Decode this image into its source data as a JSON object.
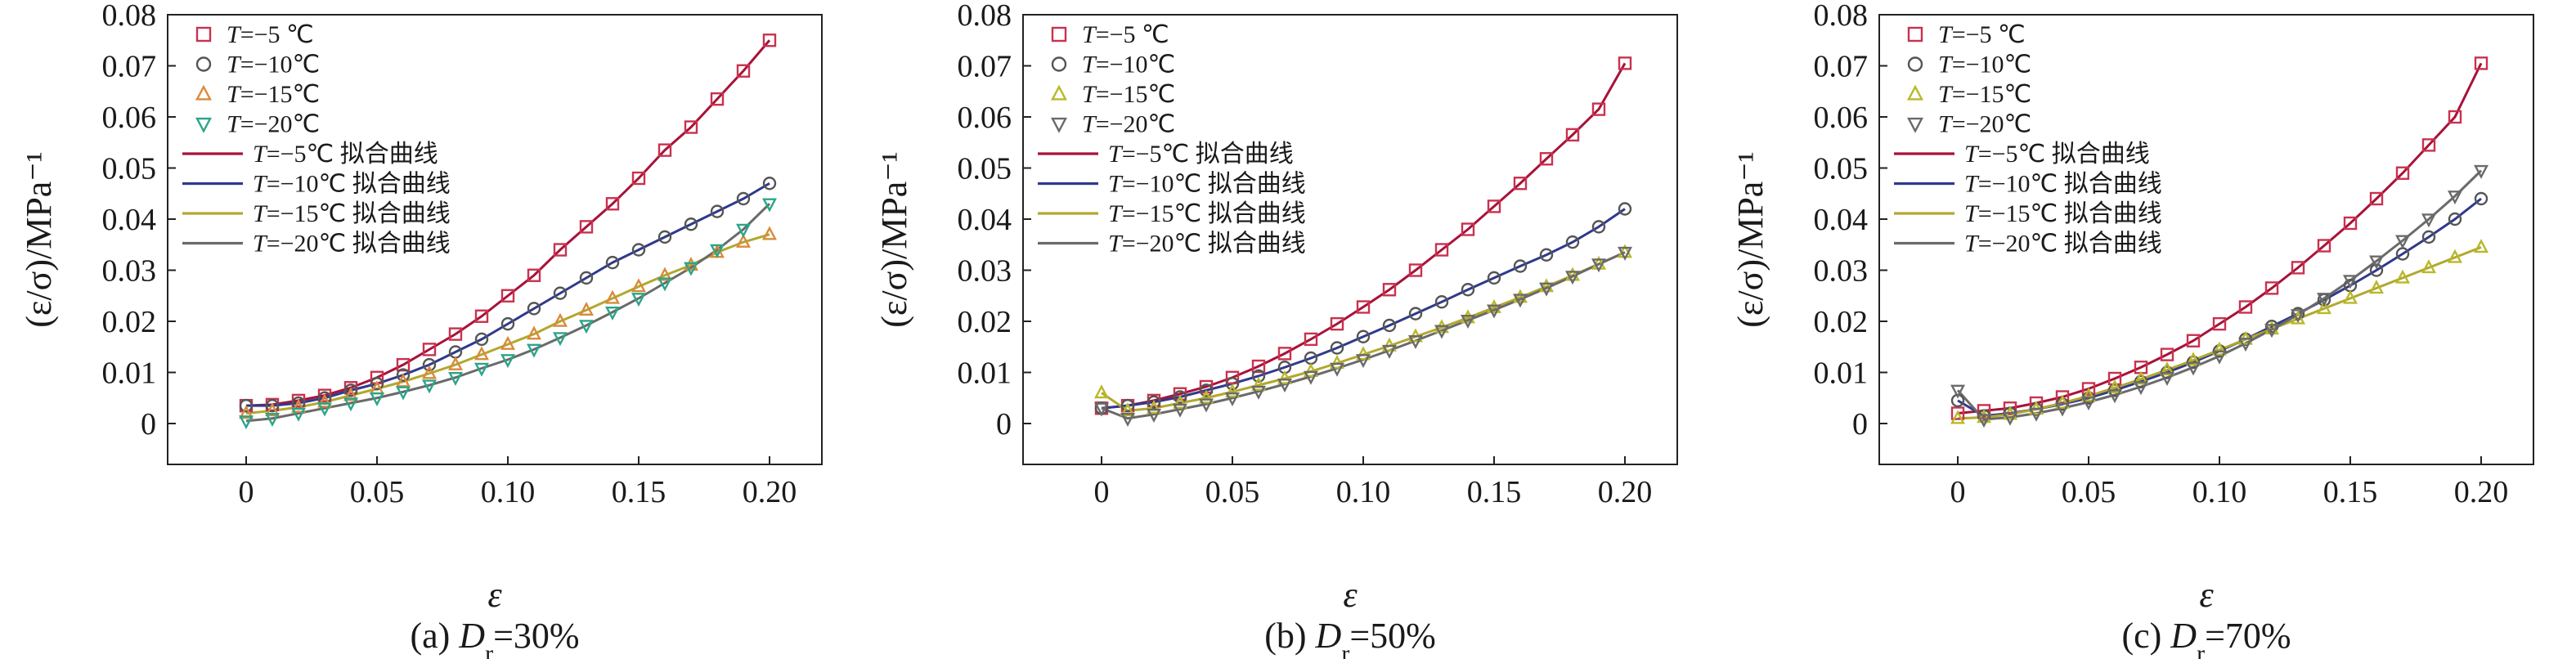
{
  "chart_data": [
    {
      "type": "scatter",
      "caption": "(a) D_r=30%",
      "caption_parts": {
        "prefix": "(a) ",
        "D": "D",
        "r": "r",
        "suffix": "=30%"
      },
      "xlabel": "ε",
      "ylabel": "(ε/σ)/MPa⁻¹",
      "xlim": [
        -0.03,
        0.22
      ],
      "ylim": [
        -0.008,
        0.08
      ],
      "xticks": [
        "0",
        "0.05",
        "0.10",
        "0.15",
        "0.20"
      ],
      "xtick_values": [
        0,
        0.05,
        0.1,
        0.15,
        0.2
      ],
      "yticks": [
        "0",
        "0.01",
        "0.02",
        "0.03",
        "0.04",
        "0.05",
        "0.06",
        "0.07",
        "0.08"
      ],
      "ytick_values": [
        0,
        0.01,
        0.02,
        0.03,
        0.04,
        0.05,
        0.06,
        0.07,
        0.08
      ],
      "legend": [
        {
          "prefix": "T",
          "text": "=−5 ℃",
          "kind": "marker",
          "marker": "square",
          "color": "#c8324e"
        },
        {
          "prefix": "T",
          "text": "=−10℃",
          "kind": "marker",
          "marker": "circle",
          "color": "#555555"
        },
        {
          "prefix": "T",
          "text": "=−15℃",
          "kind": "marker",
          "marker": "triangle-up",
          "color": "#d98a3a"
        },
        {
          "prefix": "T",
          "text": "=−20℃",
          "kind": "marker",
          "marker": "triangle-down",
          "color": "#2aa58a"
        },
        {
          "prefix": "T",
          "text": "=−5℃ 拟合曲线",
          "kind": "line",
          "color": "#a8123a"
        },
        {
          "prefix": "T",
          "text": "=−10℃ 拟合曲线",
          "kind": "line",
          "color": "#2e3a8c"
        },
        {
          "prefix": "T",
          "text": "=−15℃ 拟合曲线",
          "kind": "line",
          "color": "#b2a82e"
        },
        {
          "prefix": "T",
          "text": "=−20℃ 拟合曲线",
          "kind": "line",
          "color": "#6a6a6a"
        }
      ],
      "x": [
        0,
        0.01,
        0.02,
        0.03,
        0.04,
        0.05,
        0.06,
        0.07,
        0.08,
        0.09,
        0.1,
        0.11,
        0.12,
        0.13,
        0.14,
        0.15,
        0.16,
        0.17,
        0.18,
        0.19,
        0.2
      ],
      "series": [
        {
          "values": [
            0.0035,
            0.0037,
            0.0045,
            0.0055,
            0.007,
            0.009,
            0.0115,
            0.0145,
            0.0175,
            0.021,
            0.025,
            0.029,
            0.034,
            0.0385,
            0.043,
            0.048,
            0.0535,
            0.058,
            0.0635,
            0.069,
            0.075
          ]
        },
        {
          "values": [
            0.0035,
            0.0035,
            0.004,
            0.005,
            0.0065,
            0.0078,
            0.0095,
            0.0115,
            0.014,
            0.0165,
            0.0195,
            0.0225,
            0.0255,
            0.0285,
            0.0315,
            0.034,
            0.0365,
            0.039,
            0.0415,
            0.044,
            0.047
          ]
        },
        {
          "values": [
            0.002,
            0.0025,
            0.0032,
            0.0042,
            0.0055,
            0.0068,
            0.0082,
            0.0098,
            0.0115,
            0.0135,
            0.0155,
            0.0175,
            0.02,
            0.0222,
            0.0245,
            0.0268,
            0.029,
            0.031,
            0.0335,
            0.0355,
            0.037
          ]
        },
        {
          "values": [
            0.0005,
            0.001,
            0.002,
            0.003,
            0.004,
            0.005,
            0.0062,
            0.0075,
            0.009,
            0.0108,
            0.0125,
            0.0145,
            0.0168,
            0.0192,
            0.0218,
            0.0245,
            0.0275,
            0.0305,
            0.034,
            0.038,
            0.043
          ]
        }
      ]
    },
    {
      "type": "scatter",
      "caption": "(b) D_r=50%",
      "caption_parts": {
        "prefix": "(b) ",
        "D": "D",
        "r": "r",
        "suffix": "=50%"
      },
      "xlabel": "ε",
      "ylabel": "(ε/σ)/MPa⁻¹",
      "xlim": [
        -0.03,
        0.22
      ],
      "ylim": [
        -0.008,
        0.08
      ],
      "xticks": [
        "0",
        "0.05",
        "0.10",
        "0.15",
        "0.20"
      ],
      "xtick_values": [
        0,
        0.05,
        0.1,
        0.15,
        0.2
      ],
      "yticks": [
        "0",
        "0.01",
        "0.02",
        "0.03",
        "0.04",
        "0.05",
        "0.06",
        "0.07",
        "0.08"
      ],
      "ytick_values": [
        0,
        0.01,
        0.02,
        0.03,
        0.04,
        0.05,
        0.06,
        0.07,
        0.08
      ],
      "legend": [
        {
          "prefix": "T",
          "text": "=−5 ℃",
          "kind": "marker",
          "marker": "square",
          "color": "#c8324e"
        },
        {
          "prefix": "T",
          "text": "=−10℃",
          "kind": "marker",
          "marker": "circle",
          "color": "#555555"
        },
        {
          "prefix": "T",
          "text": "=−15℃",
          "kind": "marker",
          "marker": "triangle-up",
          "color": "#b8b82a"
        },
        {
          "prefix": "T",
          "text": "=−20℃",
          "kind": "marker",
          "marker": "triangle-down",
          "color": "#6a6a6a"
        },
        {
          "prefix": "T",
          "text": "=−5℃ 拟合曲线",
          "kind": "line",
          "color": "#a8123a"
        },
        {
          "prefix": "T",
          "text": "=−10℃ 拟合曲线",
          "kind": "line",
          "color": "#2e3a8c"
        },
        {
          "prefix": "T",
          "text": "=−15℃ 拟合曲线",
          "kind": "line",
          "color": "#b2a82e"
        },
        {
          "prefix": "T",
          "text": "=−20℃ 拟合曲线",
          "kind": "line",
          "color": "#6a6a6a"
        }
      ],
      "x": [
        0,
        0.01,
        0.02,
        0.03,
        0.04,
        0.05,
        0.06,
        0.07,
        0.08,
        0.09,
        0.1,
        0.11,
        0.12,
        0.13,
        0.14,
        0.15,
        0.16,
        0.17,
        0.18,
        0.19,
        0.2
      ],
      "series": [
        {
          "values": [
            0.003,
            0.0035,
            0.0045,
            0.0058,
            0.0072,
            0.009,
            0.0112,
            0.0137,
            0.0165,
            0.0195,
            0.0228,
            0.0262,
            0.03,
            0.034,
            0.038,
            0.0425,
            0.047,
            0.0518,
            0.0565,
            0.0615,
            0.0705
          ]
        },
        {
          "values": [
            0.003,
            0.0035,
            0.0042,
            0.0052,
            0.0065,
            0.0078,
            0.0093,
            0.011,
            0.0128,
            0.0148,
            0.017,
            0.0192,
            0.0215,
            0.0238,
            0.0262,
            0.0285,
            0.0308,
            0.033,
            0.0355,
            0.0385,
            0.042
          ]
        },
        {
          "values": [
            0.006,
            0.0025,
            0.003,
            0.004,
            0.005,
            0.0062,
            0.0075,
            0.0088,
            0.0102,
            0.0118,
            0.0135,
            0.0152,
            0.017,
            0.0188,
            0.0207,
            0.0227,
            0.0247,
            0.0268,
            0.029,
            0.0312,
            0.0335
          ]
        },
        {
          "values": [
            0.003,
            0.001,
            0.0018,
            0.0028,
            0.0038,
            0.005,
            0.0063,
            0.0077,
            0.0092,
            0.0108,
            0.0125,
            0.0143,
            0.0162,
            0.0182,
            0.0202,
            0.0222,
            0.0243,
            0.0265,
            0.0288,
            0.0312,
            0.0335
          ]
        }
      ]
    },
    {
      "type": "scatter",
      "caption": "(c) D_r=70%",
      "caption_parts": {
        "prefix": "(c) ",
        "D": "D",
        "r": "r",
        "suffix": "=70%"
      },
      "xlabel": "ε",
      "ylabel": "(ε/σ)/MPa⁻¹",
      "xlim": [
        -0.03,
        0.22
      ],
      "ylim": [
        -0.008,
        0.08
      ],
      "xticks": [
        "0",
        "0.05",
        "0.10",
        "0.15",
        "0.20"
      ],
      "xtick_values": [
        0,
        0.05,
        0.1,
        0.15,
        0.2
      ],
      "yticks": [
        "0",
        "0.01",
        "0.02",
        "0.03",
        "0.04",
        "0.05",
        "0.06",
        "0.07",
        "0.08"
      ],
      "ytick_values": [
        0,
        0.01,
        0.02,
        0.03,
        0.04,
        0.05,
        0.06,
        0.07,
        0.08
      ],
      "legend": [
        {
          "prefix": "T",
          "text": "=−5 ℃",
          "kind": "marker",
          "marker": "square",
          "color": "#c8324e"
        },
        {
          "prefix": "T",
          "text": "=−10℃",
          "kind": "marker",
          "marker": "circle",
          "color": "#555555"
        },
        {
          "prefix": "T",
          "text": "=−15℃",
          "kind": "marker",
          "marker": "triangle-up",
          "color": "#b8b82a"
        },
        {
          "prefix": "T",
          "text": "=−20℃",
          "kind": "marker",
          "marker": "triangle-down",
          "color": "#6a6a6a"
        },
        {
          "prefix": "T",
          "text": "=−5℃ 拟合曲线",
          "kind": "line",
          "color": "#a8123a"
        },
        {
          "prefix": "T",
          "text": "=−10℃ 拟合曲线",
          "kind": "line",
          "color": "#2e3a8c"
        },
        {
          "prefix": "T",
          "text": "=−15℃ 拟合曲线",
          "kind": "line",
          "color": "#b2a82e"
        },
        {
          "prefix": "T",
          "text": "=−20℃ 拟合曲线",
          "kind": "line",
          "color": "#6a6a6a"
        }
      ],
      "x": [
        0,
        0.01,
        0.02,
        0.03,
        0.04,
        0.05,
        0.06,
        0.07,
        0.08,
        0.09,
        0.1,
        0.11,
        0.12,
        0.13,
        0.14,
        0.15,
        0.16,
        0.17,
        0.18,
        0.19,
        0.2
      ],
      "series": [
        {
          "values": [
            0.002,
            0.0025,
            0.003,
            0.004,
            0.0052,
            0.0068,
            0.0088,
            0.011,
            0.0135,
            0.0162,
            0.0195,
            0.0228,
            0.0265,
            0.0305,
            0.0348,
            0.0392,
            0.044,
            0.049,
            0.0545,
            0.06,
            0.0705
          ]
        },
        {
          "values": [
            0.0045,
            0.0015,
            0.002,
            0.0028,
            0.0038,
            0.005,
            0.0065,
            0.0082,
            0.01,
            0.012,
            0.0142,
            0.0165,
            0.019,
            0.0215,
            0.0242,
            0.027,
            0.03,
            0.0332,
            0.0365,
            0.04,
            0.044
          ]
        },
        {
          "values": [
            0.001,
            0.0012,
            0.0018,
            0.0028,
            0.004,
            0.0054,
            0.007,
            0.0087,
            0.0105,
            0.0124,
            0.0144,
            0.0165,
            0.0185,
            0.0205,
            0.0225,
            0.0245,
            0.0265,
            0.0285,
            0.0305,
            0.0325,
            0.0345
          ]
        },
        {
          "values": [
            0.0065,
            0.0008,
            0.0012,
            0.002,
            0.003,
            0.0042,
            0.0056,
            0.0072,
            0.009,
            0.011,
            0.0132,
            0.0157,
            0.0184,
            0.0213,
            0.0245,
            0.028,
            0.0318,
            0.0358,
            0.04,
            0.0445,
            0.0495
          ]
        }
      ]
    }
  ]
}
